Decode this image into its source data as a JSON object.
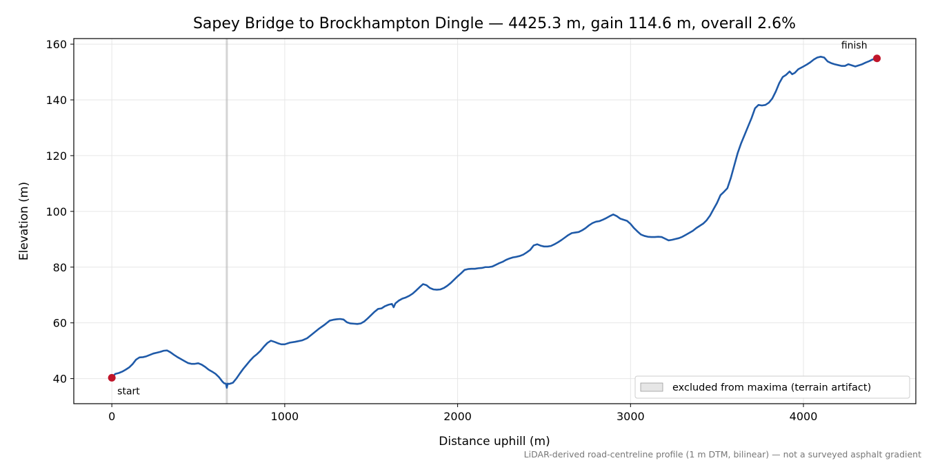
{
  "chart_data": {
    "type": "line",
    "title": "Sapey Bridge to Brockhampton Dingle — 4425.3 m, gain 114.6 m, overall 2.6%",
    "xlabel": "Distance uphill (m)",
    "ylabel": "Elevation (m)",
    "xlim": [
      -220,
      4650
    ],
    "ylim": [
      31,
      162
    ],
    "xticks": [
      0,
      1000,
      2000,
      3000,
      4000
    ],
    "yticks": [
      40,
      60,
      80,
      100,
      120,
      140,
      160
    ],
    "grid": true,
    "legend_placement": "bottom-right",
    "legend": [
      {
        "label": "excluded from maxima (terrain artifact)",
        "kind": "excluded-region"
      }
    ],
    "excluded_x": 665,
    "series": [
      {
        "color": "#1f5aa8",
        "x": [
          0,
          20,
          40,
          60,
          80,
          100,
          120,
          140,
          160,
          180,
          200,
          220,
          240,
          260,
          280,
          300,
          320,
          340,
          360,
          380,
          400,
          420,
          440,
          460,
          480,
          500,
          520,
          540,
          560,
          580,
          600,
          620,
          640,
          650,
          660,
          665,
          670,
          680,
          700,
          720,
          740,
          760,
          780,
          800,
          820,
          840,
          860,
          880,
          900,
          920,
          940,
          960,
          980,
          1000,
          1030,
          1060,
          1100,
          1130,
          1160,
          1200,
          1230,
          1260,
          1280,
          1300,
          1320,
          1340,
          1360,
          1380,
          1400,
          1420,
          1440,
          1460,
          1480,
          1500,
          1520,
          1540,
          1560,
          1580,
          1600,
          1620,
          1630,
          1640,
          1660,
          1680,
          1700,
          1720,
          1740,
          1760,
          1780,
          1800,
          1820,
          1840,
          1860,
          1880,
          1900,
          1920,
          1940,
          1960,
          1980,
          2000,
          2020,
          2040,
          2060,
          2080,
          2100,
          2120,
          2140,
          2160,
          2180,
          2200,
          2220,
          2240,
          2260,
          2280,
          2300,
          2320,
          2340,
          2360,
          2380,
          2400,
          2420,
          2440,
          2460,
          2480,
          2500,
          2520,
          2540,
          2560,
          2580,
          2600,
          2620,
          2640,
          2660,
          2680,
          2700,
          2720,
          2740,
          2760,
          2780,
          2800,
          2820,
          2840,
          2860,
          2880,
          2900,
          2920,
          2940,
          2960,
          2980,
          3000,
          3020,
          3040,
          3060,
          3080,
          3100,
          3120,
          3140,
          3160,
          3180,
          3200,
          3220,
          3240,
          3260,
          3280,
          3300,
          3320,
          3340,
          3360,
          3380,
          3400,
          3420,
          3440,
          3460,
          3480,
          3500,
          3520,
          3540,
          3560,
          3580,
          3600,
          3620,
          3640,
          3660,
          3680,
          3700,
          3720,
          3740,
          3760,
          3780,
          3800,
          3820,
          3840,
          3860,
          3880,
          3900,
          3920,
          3935,
          3950,
          3970,
          4000,
          4020,
          4040,
          4060,
          4080,
          4100,
          4120,
          4130,
          4140,
          4160,
          4180,
          4200,
          4220,
          4240,
          4260,
          4280,
          4300,
          4320,
          4340,
          4360,
          4380,
          4400,
          4425
        ],
        "y": [
          40.3,
          41.7,
          42.0,
          42.5,
          43.2,
          44.0,
          45.2,
          46.8,
          47.6,
          47.7,
          48.0,
          48.5,
          49.0,
          49.3,
          49.6,
          50.0,
          50.1,
          49.4,
          48.5,
          47.7,
          47.0,
          46.3,
          45.6,
          45.3,
          45.3,
          45.5,
          45.0,
          44.2,
          43.2,
          42.5,
          41.7,
          40.5,
          38.9,
          38.3,
          38.2,
          36.7,
          38.2,
          38.1,
          38.5,
          40.0,
          41.8,
          43.5,
          45.0,
          46.5,
          47.8,
          48.8,
          50.0,
          51.5,
          52.8,
          53.6,
          53.2,
          52.7,
          52.3,
          52.3,
          52.9,
          53.2,
          53.7,
          54.5,
          56.0,
          58.0,
          59.3,
          60.8,
          61.1,
          61.3,
          61.4,
          61.2,
          60.2,
          59.8,
          59.7,
          59.6,
          59.8,
          60.5,
          61.6,
          62.8,
          64.0,
          65.0,
          65.2,
          66.0,
          66.5,
          66.8,
          65.6,
          67.0,
          68.0,
          68.7,
          69.1,
          69.7,
          70.5,
          71.6,
          72.8,
          73.9,
          73.5,
          72.5,
          72.0,
          71.9,
          72.0,
          72.5,
          73.3,
          74.3,
          75.5,
          76.7,
          77.8,
          79.0,
          79.3,
          79.4,
          79.4,
          79.6,
          79.7,
          80.0,
          80.0,
          80.2,
          80.8,
          81.4,
          81.9,
          82.6,
          83.1,
          83.5,
          83.7,
          84.0,
          84.5,
          85.3,
          86.2,
          87.8,
          88.2,
          87.7,
          87.4,
          87.4,
          87.6,
          88.2,
          88.9,
          89.7,
          90.6,
          91.5,
          92.2,
          92.4,
          92.6,
          93.2,
          94.0,
          95.0,
          95.8,
          96.3,
          96.5,
          97.0,
          97.6,
          98.3,
          98.9,
          98.3,
          97.4,
          97.0,
          96.6,
          95.5,
          94.0,
          92.8,
          91.7,
          91.2,
          90.9,
          90.8,
          90.8,
          90.9,
          90.8,
          90.2,
          89.6,
          89.8,
          90.1,
          90.4,
          90.9,
          91.6,
          92.3,
          93.0,
          94.0,
          94.8,
          95.6,
          96.8,
          98.5,
          100.8,
          103.0,
          105.8,
          107.0,
          108.3,
          112.0,
          116.5,
          121.0,
          124.5,
          127.5,
          130.5,
          133.5,
          137.0,
          138.2,
          138.0,
          138.2,
          139.0,
          140.5,
          143.0,
          146.0,
          148.2,
          149.0,
          150.2,
          149.2,
          149.7,
          151.0,
          152.0,
          152.7,
          153.5,
          154.5,
          155.2,
          155.5,
          155.2,
          154.5,
          153.8,
          153.2,
          152.8,
          152.5,
          152.2,
          152.2,
          152.8,
          152.4,
          152.0,
          152.4,
          152.8,
          153.4,
          153.9,
          154.5,
          154.9
        ]
      }
    ],
    "markers": [
      {
        "x": 0,
        "y": 40.3,
        "label": "start",
        "color": "#c0152a"
      },
      {
        "x": 4425,
        "y": 154.9,
        "label": "finish",
        "color": "#c0152a"
      }
    ],
    "footnote": "LiDAR-derived road-centreline profile (1 m DTM, bilinear) — not a surveyed asphalt gradient"
  }
}
